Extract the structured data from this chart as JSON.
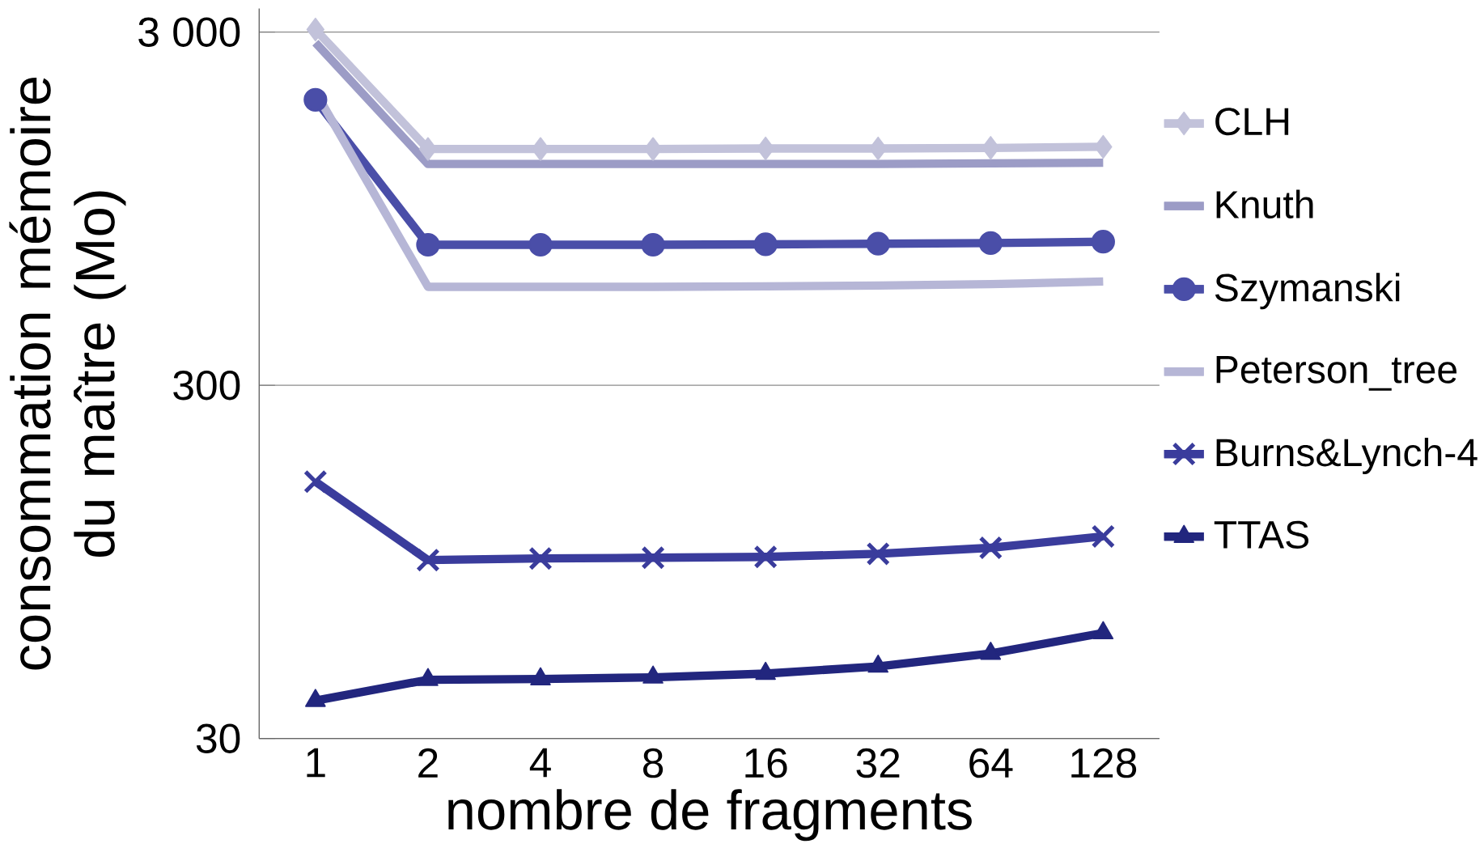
{
  "chart_data": {
    "type": "line",
    "xlabel": "nombre de fragments",
    "ylabel": "consommation mémoire du maître (Mo)",
    "categories": [
      "1",
      "2",
      "4",
      "8",
      "16",
      "32",
      "64",
      "128"
    ],
    "log": "y",
    "ylim": [
      30,
      3500
    ],
    "yticks": [
      30,
      300,
      {
        "value": 3000,
        "label": "3 000"
      }
    ],
    "grid": "y",
    "legend": "right",
    "series": [
      {
        "name": "CLH",
        "color": "#c2c2da",
        "marker": "diamond",
        "values": [
          3050,
          1400,
          1400,
          1400,
          1405,
          1405,
          1410,
          1420
        ]
      },
      {
        "name": "Knuth",
        "color": "#9c9cc6",
        "marker": "none",
        "values": [
          2800,
          1270,
          1270,
          1270,
          1270,
          1270,
          1275,
          1280
        ]
      },
      {
        "name": "Szymanski",
        "color": "#4a4ea8",
        "marker": "circle",
        "values": [
          1930,
          750,
          750,
          750,
          752,
          755,
          758,
          765
        ]
      },
      {
        "name": "Peterson_tree",
        "color": "#b6b6d6",
        "marker": "none",
        "values": [
          2030,
          570,
          570,
          570,
          572,
          575,
          580,
          590
        ]
      },
      {
        "name": "Burns&Lynch-4",
        "color": "#3a3c9c",
        "marker": "cross",
        "values": [
          160,
          96,
          97,
          97.5,
          98,
          100,
          104,
          112
        ]
      },
      {
        "name": "TTAS",
        "color": "#22267e",
        "marker": "triangle",
        "values": [
          38.4,
          44,
          44.2,
          44.7,
          45.8,
          48,
          52.2,
          59.7
        ]
      }
    ]
  }
}
